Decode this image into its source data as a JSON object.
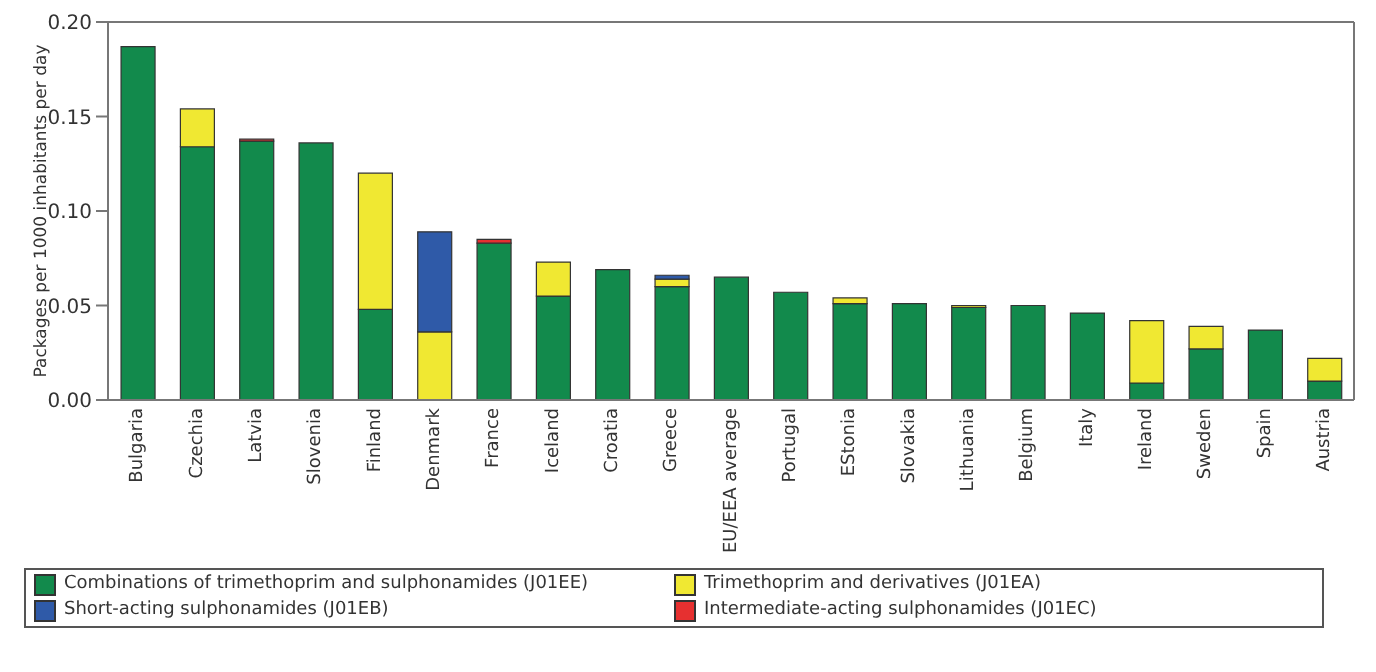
{
  "chart_data": {
    "type": "bar",
    "stacked": true,
    "ylabel": "Packages per 1000 inhabitants per day",
    "categories": [
      "Bulgaria",
      "Czechia",
      "Latvia",
      "Slovenia",
      "Finland",
      "Denmark",
      "France",
      "Iceland",
      "Croatia",
      "Greece",
      "EU/EEA average",
      "Portugal",
      "EStonia",
      "Slovakia",
      "Lithuania",
      "Belgium",
      "Italy",
      "Ireland",
      "Sweden",
      "Spain",
      "Austria"
    ],
    "series": [
      {
        "name": "Combinations of trimethoprim and sulphonamides (J01EE)",
        "color": "#128a4c",
        "values": [
          0.187,
          0.134,
          0.137,
          0.136,
          0.048,
          0,
          0.083,
          0.055,
          0.069,
          0.06,
          0.065,
          0.057,
          0.051,
          0.051,
          0.049,
          0.05,
          0.046,
          0.009,
          0.027,
          0.037,
          0.01
        ]
      },
      {
        "name": "Trimethoprim and derivatives (J01EA)",
        "color": "#f0e832",
        "values": [
          0,
          0.02,
          0,
          0,
          0.072,
          0.036,
          0,
          0.018,
          0,
          0.004,
          0,
          0,
          0.003,
          0,
          0.001,
          0,
          0,
          0.033,
          0.012,
          0,
          0.012
        ]
      },
      {
        "name": "Short-acting sulphonamides (J01EB)",
        "color": "#2f5aa8",
        "values": [
          0,
          0,
          0,
          0,
          0,
          0.053,
          0,
          0,
          0,
          0.002,
          0,
          0,
          0,
          0,
          0,
          0,
          0,
          0,
          0,
          0,
          0
        ]
      },
      {
        "name": "Intermediate-acting sulphonamides (J01EC)",
        "color": "#e63030",
        "values": [
          0,
          0,
          0.001,
          0,
          0,
          0,
          0.002,
          0,
          0,
          0,
          0,
          0,
          0,
          0,
          0,
          0,
          0,
          0,
          0,
          0,
          0
        ]
      }
    ],
    "ylim": [
      0,
      0.2
    ],
    "yticks": [
      {
        "value": 0,
        "label": "0.00"
      },
      {
        "value": 0.05,
        "label": "0.05"
      },
      {
        "value": 0.1,
        "label": "0.10"
      },
      {
        "value": 0.15,
        "label": "0.15"
      },
      {
        "value": 0.2,
        "label": "0.20"
      }
    ],
    "legend": "bottom",
    "grid": false
  }
}
